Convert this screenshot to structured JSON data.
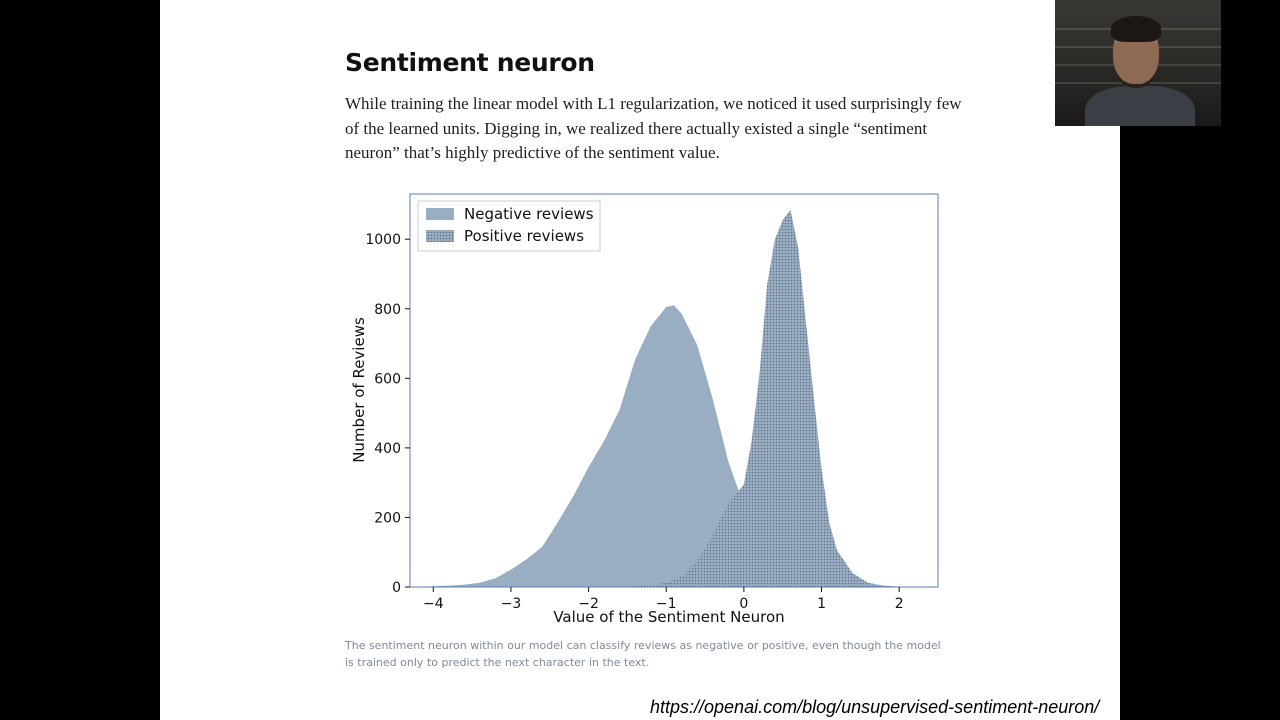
{
  "slide": {
    "title": "Sentiment neuron",
    "intro": "While training the linear model with L1 regularization, we noticed it used surprisingly few of the learned units. Digging in, we realized there actually existed a single “sentiment neuron” that’s highly predictive of the sentiment value.",
    "caption": "The sentiment neuron within our model can classify reviews as negative or positive, even though the model is trained only to predict the next character in the text.",
    "source_url": "https://openai.com/blog/unsupervised-sentiment-neuron/"
  },
  "chart_data": {
    "type": "area",
    "xlabel": "Value of the Sentiment Neuron",
    "ylabel": "Number of Reviews",
    "xlim": [
      -4.3,
      2.5
    ],
    "ylim": [
      0,
      1130
    ],
    "xticks": [
      -4,
      -3,
      -2,
      -1,
      0,
      1,
      2
    ],
    "yticks": [
      0,
      200,
      400,
      600,
      800,
      1000
    ],
    "xtick_labels": [
      "−4",
      "−3",
      "−2",
      "−1",
      "0",
      "1",
      "2"
    ],
    "ytick_labels": [
      "0",
      "200",
      "400",
      "600",
      "800",
      "1000"
    ],
    "legend": {
      "placement": "top-left",
      "entries": [
        "Negative reviews",
        "Positive reviews"
      ]
    },
    "grid": false,
    "colors": {
      "negative": "#9aaec3",
      "positive": "#9aaec3",
      "positive_hatch": "#5d6f82",
      "frame": "#5b7fb0"
    },
    "series": [
      {
        "name": "Negative reviews",
        "x": [
          -4.2,
          -4.0,
          -3.8,
          -3.6,
          -3.4,
          -3.2,
          -3.0,
          -2.8,
          -2.6,
          -2.4,
          -2.2,
          -2.0,
          -1.8,
          -1.6,
          -1.4,
          -1.2,
          -1.0,
          -0.9,
          -0.8,
          -0.6,
          -0.4,
          -0.2,
          0.0,
          0.2,
          0.4,
          0.6,
          0.8,
          1.0,
          1.2,
          1.4,
          1.6,
          1.8,
          2.0,
          2.2
        ],
        "values": [
          0,
          2,
          4,
          7,
          12,
          25,
          50,
          80,
          115,
          185,
          260,
          345,
          420,
          510,
          655,
          750,
          805,
          810,
          785,
          695,
          540,
          360,
          235,
          130,
          75,
          40,
          20,
          10,
          5,
          2,
          1,
          0,
          0,
          0
        ]
      },
      {
        "name": "Positive reviews",
        "x": [
          -1.6,
          -1.4,
          -1.2,
          -1.0,
          -0.8,
          -0.6,
          -0.4,
          -0.2,
          0.0,
          0.1,
          0.2,
          0.3,
          0.4,
          0.5,
          0.6,
          0.7,
          0.8,
          0.9,
          1.0,
          1.1,
          1.2,
          1.4,
          1.6,
          1.8,
          2.0,
          2.2
        ],
        "values": [
          0,
          2,
          5,
          12,
          30,
          75,
          150,
          240,
          295,
          420,
          610,
          870,
          1000,
          1055,
          1085,
          975,
          760,
          545,
          340,
          185,
          105,
          40,
          12,
          4,
          1,
          0
        ]
      }
    ]
  }
}
